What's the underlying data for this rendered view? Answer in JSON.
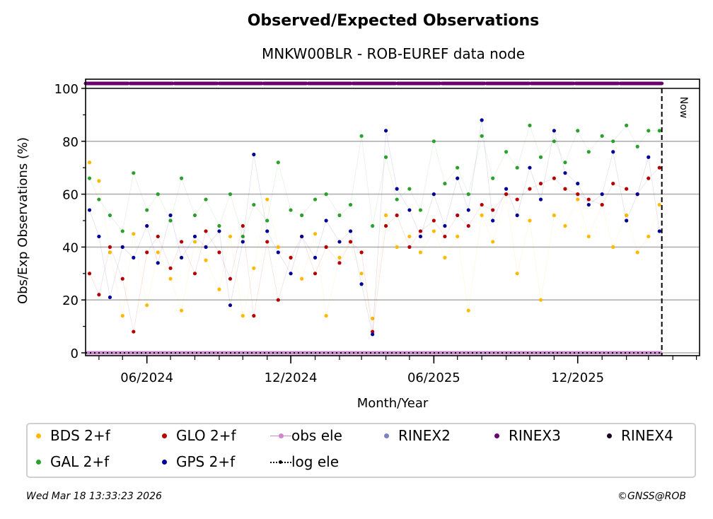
{
  "chart_data": {
    "type": "scatter",
    "title": "Observed/Expected Observations",
    "subtitle": "MNKW00BLR - ROB-EUREF data node",
    "xlabel": "Month/Year",
    "ylabel": "Obs/Exp Observations (%)",
    "ylim": [
      -1,
      103
    ],
    "yticks": [
      0,
      20,
      40,
      60,
      80,
      100
    ],
    "xlim": [
      "2024-03-15",
      "2026-05-05"
    ],
    "xticks": [
      {
        "date": "2024-06-01",
        "label": "06/2024"
      },
      {
        "date": "2024-12-01",
        "label": "12/2024"
      },
      {
        "date": "2025-06-01",
        "label": "06/2025"
      },
      {
        "date": "2025-12-01",
        "label": "12/2025"
      }
    ],
    "grid": true,
    "now_marker": {
      "date": "2026-03-18",
      "label": "Now"
    },
    "legend_position": "bottom",
    "series": [
      {
        "name": "BDS 2+f",
        "color": "#ffb900",
        "x": [
          "2024-03-20",
          "2024-04-01",
          "2024-04-15",
          "2024-05-01",
          "2024-05-15",
          "2024-06-01",
          "2024-06-15",
          "2024-07-01",
          "2024-07-15",
          "2024-08-01",
          "2024-08-15",
          "2024-09-01",
          "2024-09-15",
          "2024-10-01",
          "2024-10-15",
          "2024-11-01",
          "2024-11-15",
          "2024-12-01",
          "2024-12-15",
          "2025-01-01",
          "2025-01-15",
          "2025-02-01",
          "2025-02-15",
          "2025-03-01",
          "2025-03-15",
          "2025-04-01",
          "2025-04-15",
          "2025-05-01",
          "2025-05-15",
          "2025-06-01",
          "2025-06-15",
          "2025-07-01",
          "2025-07-15",
          "2025-08-01",
          "2025-08-15",
          "2025-09-01",
          "2025-09-15",
          "2025-10-01",
          "2025-10-15",
          "2025-11-01",
          "2025-11-15",
          "2025-12-01",
          "2025-12-15",
          "2026-01-01",
          "2026-01-15",
          "2026-02-01",
          "2026-02-15",
          "2026-03-01",
          "2026-03-15"
        ],
        "y": [
          72,
          65,
          38,
          14,
          45,
          18,
          38,
          28,
          16,
          42,
          35,
          24,
          44,
          14,
          32,
          58,
          40,
          36,
          28,
          45,
          14,
          36,
          42,
          30,
          13,
          52,
          40,
          44,
          38,
          46,
          36,
          44,
          16,
          52,
          42,
          60,
          30,
          50,
          20,
          52,
          48,
          58,
          44,
          56,
          40,
          52,
          38,
          44,
          56
        ]
      },
      {
        "name": "GAL 2+f",
        "color": "#2ca02c",
        "x": [
          "2024-03-20",
          "2024-04-01",
          "2024-04-15",
          "2024-05-01",
          "2024-05-15",
          "2024-06-01",
          "2024-06-15",
          "2024-07-01",
          "2024-07-15",
          "2024-08-01",
          "2024-08-15",
          "2024-09-01",
          "2024-09-15",
          "2024-10-01",
          "2024-10-15",
          "2024-11-01",
          "2024-11-15",
          "2024-12-01",
          "2024-12-15",
          "2025-01-01",
          "2025-01-15",
          "2025-02-01",
          "2025-02-15",
          "2025-03-01",
          "2025-03-15",
          "2025-04-01",
          "2025-04-15",
          "2025-05-01",
          "2025-05-15",
          "2025-06-01",
          "2025-06-15",
          "2025-07-01",
          "2025-07-15",
          "2025-08-01",
          "2025-08-15",
          "2025-09-01",
          "2025-09-15",
          "2025-10-01",
          "2025-10-15",
          "2025-11-01",
          "2025-11-15",
          "2025-12-01",
          "2025-12-15",
          "2026-01-01",
          "2026-01-15",
          "2026-02-01",
          "2026-02-15",
          "2026-03-01",
          "2026-03-15"
        ],
        "y": [
          66,
          58,
          52,
          46,
          68,
          54,
          60,
          50,
          66,
          52,
          58,
          48,
          60,
          44,
          56,
          50,
          72,
          54,
          52,
          58,
          60,
          52,
          56,
          82,
          48,
          74,
          58,
          62,
          54,
          80,
          64,
          70,
          60,
          82,
          66,
          76,
          70,
          86,
          74,
          80,
          72,
          84,
          76,
          82,
          80,
          86,
          78,
          84,
          84
        ]
      },
      {
        "name": "GLO 2+f",
        "color": "#b40000",
        "x": [
          "2024-03-20",
          "2024-04-01",
          "2024-04-15",
          "2024-05-01",
          "2024-05-15",
          "2024-06-01",
          "2024-06-15",
          "2024-07-01",
          "2024-07-15",
          "2024-08-01",
          "2024-08-15",
          "2024-09-01",
          "2024-09-15",
          "2024-10-01",
          "2024-10-15",
          "2024-11-01",
          "2024-11-15",
          "2024-12-01",
          "2024-12-15",
          "2025-01-01",
          "2025-01-15",
          "2025-02-01",
          "2025-02-15",
          "2025-03-01",
          "2025-03-15",
          "2025-04-01",
          "2025-04-15",
          "2025-05-01",
          "2025-05-15",
          "2025-06-01",
          "2025-06-15",
          "2025-07-01",
          "2025-07-15",
          "2025-08-01",
          "2025-08-15",
          "2025-09-01",
          "2025-09-15",
          "2025-10-01",
          "2025-10-15",
          "2025-11-01",
          "2025-11-15",
          "2025-12-01",
          "2025-12-15",
          "2026-01-01",
          "2026-01-15",
          "2026-02-01",
          "2026-02-15",
          "2026-03-01",
          "2026-03-15"
        ],
        "y": [
          30,
          22,
          40,
          28,
          8,
          38,
          44,
          32,
          42,
          30,
          46,
          38,
          28,
          48,
          14,
          42,
          20,
          36,
          44,
          30,
          40,
          34,
          42,
          38,
          8,
          48,
          52,
          40,
          46,
          50,
          44,
          52,
          48,
          56,
          54,
          60,
          58,
          62,
          64,
          66,
          62,
          60,
          58,
          56,
          64,
          62,
          60,
          66,
          70
        ]
      },
      {
        "name": "GPS 2+f",
        "color": "#000096",
        "x": [
          "2024-03-20",
          "2024-04-01",
          "2024-04-15",
          "2024-05-01",
          "2024-05-15",
          "2024-06-01",
          "2024-06-15",
          "2024-07-01",
          "2024-07-15",
          "2024-08-01",
          "2024-08-15",
          "2024-09-01",
          "2024-09-15",
          "2024-10-01",
          "2024-10-15",
          "2024-11-01",
          "2024-11-15",
          "2024-12-01",
          "2024-12-15",
          "2025-01-01",
          "2025-01-15",
          "2025-02-01",
          "2025-02-15",
          "2025-03-01",
          "2025-03-15",
          "2025-04-01",
          "2025-04-15",
          "2025-05-01",
          "2025-05-15",
          "2025-06-01",
          "2025-06-15",
          "2025-07-01",
          "2025-07-15",
          "2025-08-01",
          "2025-08-15",
          "2025-09-01",
          "2025-09-15",
          "2025-10-01",
          "2025-10-15",
          "2025-11-01",
          "2025-11-15",
          "2025-12-01",
          "2025-12-15",
          "2026-01-01",
          "2026-01-15",
          "2026-02-01",
          "2026-02-15",
          "2026-03-01",
          "2026-03-15"
        ],
        "y": [
          54,
          44,
          21,
          40,
          36,
          48,
          34,
          52,
          36,
          44,
          40,
          46,
          18,
          42,
          75,
          46,
          38,
          30,
          44,
          36,
          50,
          42,
          46,
          26,
          7,
          84,
          62,
          54,
          44,
          60,
          48,
          66,
          54,
          88,
          50,
          62,
          52,
          70,
          58,
          84,
          68,
          64,
          56,
          60,
          76,
          50,
          60,
          74,
          46
        ]
      },
      {
        "name": "RINEX3",
        "color": "#6a006e",
        "constant_y": 101.5,
        "x_range": [
          "2024-03-15",
          "2026-03-18"
        ]
      },
      {
        "name": "obs ele",
        "color": "#cc88cc",
        "constant_y": 0,
        "x_range": [
          "2024-03-15",
          "2026-03-18"
        ]
      },
      {
        "name": "log ele",
        "color": "#000000",
        "constant_y": 0,
        "x_range": [
          "2024-03-15",
          "2026-03-18"
        ]
      }
    ],
    "legend": [
      {
        "label": "BDS 2+f",
        "color": "#ffb900",
        "marker": "dot"
      },
      {
        "label": "GLO 2+f",
        "color": "#b40000",
        "marker": "dot"
      },
      {
        "label": "obs ele",
        "color": "#cc88cc",
        "marker": "line-dot"
      },
      {
        "label": "RINEX2",
        "color": "#8080c0",
        "marker": "dot"
      },
      {
        "label": "RINEX3",
        "color": "#6a006e",
        "marker": "dot"
      },
      {
        "label": "RINEX4",
        "color": "#1a0020",
        "marker": "dot"
      },
      {
        "label": "GAL 2+f",
        "color": "#2ca02c",
        "marker": "dot"
      },
      {
        "label": "GPS 2+f",
        "color": "#000096",
        "marker": "dot"
      },
      {
        "label": "log ele",
        "color": "#000000",
        "marker": "dotted-line-dot"
      }
    ]
  },
  "footer": {
    "timestamp": "Wed Mar 18 13:33:23 2026",
    "copyright": "©GNSS@ROB"
  }
}
